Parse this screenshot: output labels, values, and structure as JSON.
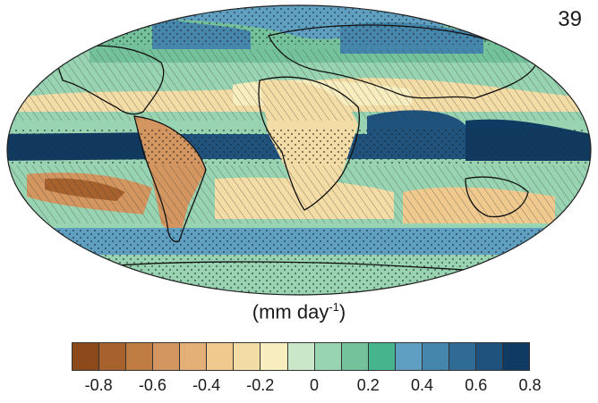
{
  "model_count": "39",
  "units": {
    "base": "(mm day",
    "exponent": "-1",
    "close": ")"
  },
  "colorbar": {
    "colors": [
      "#8c4a1c",
      "#a7612d",
      "#bf7d44",
      "#d39660",
      "#e5b078",
      "#efc98e",
      "#f3dca5",
      "#f7edbe",
      "#cbe7c9",
      "#98d4b1",
      "#73c29b",
      "#46b48c",
      "#5e9fc2",
      "#4586ac",
      "#2f6b94",
      "#1f527d",
      "#0f3a62"
    ],
    "tick_labels": [
      "-0.8",
      "-0.6",
      "-0.4",
      "-0.2",
      "0",
      "0.2",
      "0.4",
      "0.6",
      "0.8"
    ]
  }
}
